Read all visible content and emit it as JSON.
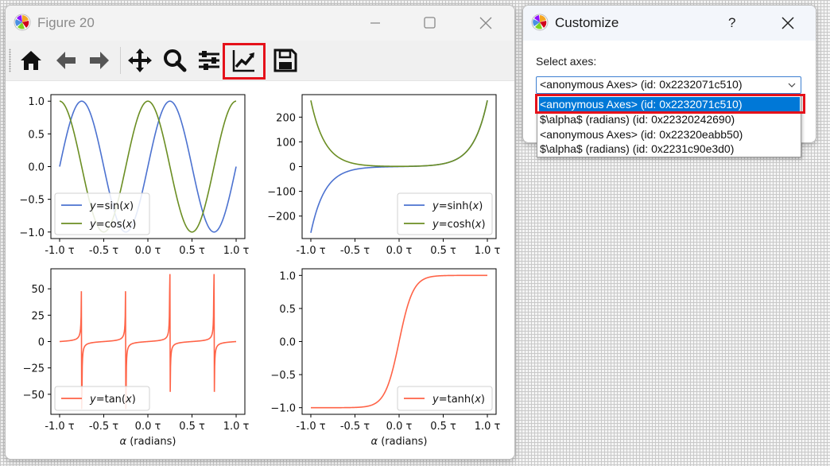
{
  "figure_window": {
    "title": "Figure 20",
    "toolbar": [
      "home-icon",
      "back-icon",
      "forward-icon",
      "pan-icon",
      "zoom-icon",
      "configure-subplots-icon",
      "customize-axes-icon",
      "save-icon"
    ]
  },
  "customize_window": {
    "title": "Customize",
    "help_label": "?",
    "select_axes_label": "Select axes:",
    "selected": "<anonymous Axes> (id: 0x2232071c510)",
    "options": [
      "<anonymous Axes> (id: 0x2232071c510)",
      "$\\alpha$ (radians) (id: 0x22320242690)",
      "<anonymous Axes> (id: 0x22320eabb50)",
      "$\\alpha$ (radians) (id: 0x2231c90e3d0)"
    ]
  },
  "colors": {
    "blue": "#4c72d0",
    "green": "#6b8e23",
    "tomato": "#ff6347",
    "highlight": "#e5111a",
    "select": "#0078d7"
  },
  "chart_data": [
    {
      "type": "line",
      "xticks": [
        "-1.0 τ",
        "-0.5 τ",
        "0.0 τ",
        "0.5 τ",
        "1.0 τ"
      ],
      "yticks": [
        "1.0",
        "0.5",
        "0.0",
        "−0.5",
        "−1.0"
      ],
      "xlim": [
        -1,
        1
      ],
      "ylim": [
        -1.1,
        1.1
      ],
      "series": [
        {
          "name": "y=sin(x)",
          "function": "sin",
          "color": "#4c72d0"
        },
        {
          "name": "y=cos(x)",
          "function": "cos",
          "color": "#6b8e23"
        }
      ],
      "legend_labels": [
        [
          "y",
          "=sin(",
          "x",
          ")"
        ],
        [
          "y",
          "=cos(",
          "x",
          ")"
        ]
      ],
      "legend": "lower-left"
    },
    {
      "type": "line",
      "xticks": [
        "-1.0 τ",
        "-0.5 τ",
        "0.0 τ",
        "0.5 τ",
        "1.0 τ"
      ],
      "yticks": [
        "200",
        "100",
        "0",
        "−100",
        "−200"
      ],
      "xlim": [
        -1,
        1
      ],
      "ylim": [
        -291,
        291
      ],
      "series": [
        {
          "name": "y=sinh(x)",
          "function": "sinh",
          "color": "#4c72d0"
        },
        {
          "name": "y=cosh(x)",
          "function": "cosh",
          "color": "#6b8e23"
        }
      ],
      "legend_labels": [
        [
          "y",
          "=sinh(",
          "x",
          ")"
        ],
        [
          "y",
          "=cosh(",
          "x",
          ")"
        ]
      ],
      "legend": "lower-right"
    },
    {
      "type": "line",
      "xticks": [
        "-1.0 τ",
        "-0.5 τ",
        "0.0 τ",
        "0.5 τ",
        "1.0 τ"
      ],
      "yticks": [
        "50",
        "25",
        "0",
        "−25",
        "−50"
      ],
      "xlim": [
        -1,
        1
      ],
      "ylim": [
        -69,
        69
      ],
      "xlabel": [
        "α",
        " (radians)"
      ],
      "series": [
        {
          "name": "y=tan(x)",
          "function": "tan",
          "color": "#ff6347"
        }
      ],
      "legend_labels": [
        [
          "y",
          "=tan(",
          "x",
          ")"
        ]
      ],
      "legend": "lower-left"
    },
    {
      "type": "line",
      "xticks": [
        "-1.0 τ",
        "-0.5 τ",
        "0.0 τ",
        "0.5 τ",
        "1.0 τ"
      ],
      "yticks": [
        "1.0",
        "0.5",
        "0.0",
        "−0.5",
        "−1.0"
      ],
      "xlim": [
        -1,
        1
      ],
      "ylim": [
        -1.1,
        1.1
      ],
      "xlabel": [
        "α",
        " (radians)"
      ],
      "series": [
        {
          "name": "y=tanh(x)",
          "function": "tanh",
          "color": "#ff6347"
        }
      ],
      "legend_labels": [
        [
          "y",
          "=tanh(",
          "x",
          ")"
        ]
      ],
      "legend": "lower-right"
    }
  ]
}
